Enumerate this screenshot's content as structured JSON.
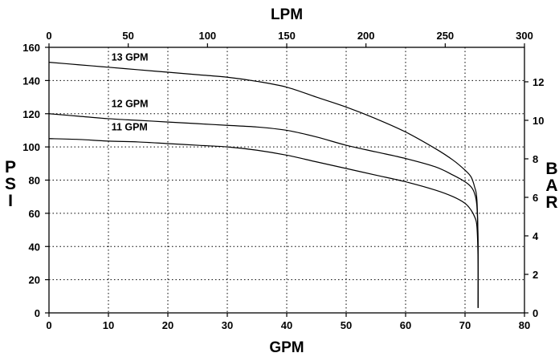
{
  "chart_data": {
    "type": "line",
    "xlabel": "GPM",
    "x2label": "LPM",
    "ylabel": "PSI",
    "y2label": "BAR",
    "xlim": [
      0,
      80
    ],
    "ylim": [
      0,
      160
    ],
    "x2lim": [
      0,
      300
    ],
    "y2lim": [
      0,
      13.79
    ],
    "x_ticks": [
      0,
      10,
      20,
      30,
      40,
      50,
      60,
      70,
      80
    ],
    "y_ticks": [
      0,
      20,
      40,
      60,
      80,
      100,
      120,
      140,
      160
    ],
    "x2_ticks": [
      0,
      50,
      100,
      150,
      200,
      250,
      300
    ],
    "y2_ticks": [
      0,
      2,
      4,
      6,
      8,
      10,
      12
    ],
    "grid": true,
    "series": [
      {
        "name": "13 GPM",
        "label_at": [
          10.5,
          152
        ],
        "x": [
          0,
          5,
          10,
          15,
          20,
          25,
          30,
          35,
          40,
          45,
          50,
          55,
          60,
          65,
          68,
          70,
          71,
          71.6,
          72.0,
          72.2,
          72.2
        ],
        "y": [
          151,
          149.5,
          148,
          146.5,
          145,
          143.5,
          142,
          139.5,
          136,
          130,
          124,
          117,
          109,
          99,
          92,
          86,
          82,
          76,
          68,
          40,
          3
        ]
      },
      {
        "name": "12 GPM",
        "label_at": [
          10.5,
          124
        ],
        "x": [
          0,
          5,
          10,
          15,
          20,
          25,
          30,
          35,
          40,
          45,
          50,
          55,
          60,
          65,
          68,
          70,
          71,
          71.6,
          72.0,
          72.2,
          72.2
        ],
        "y": [
          120,
          118.5,
          117,
          116,
          115,
          114,
          113,
          112,
          110,
          106,
          101,
          97,
          93,
          88,
          83,
          79,
          76,
          72,
          64,
          40,
          3
        ]
      },
      {
        "name": "11 GPM",
        "label_at": [
          10.5,
          110
        ],
        "x": [
          0,
          5,
          10,
          15,
          20,
          25,
          30,
          35,
          40,
          45,
          50,
          55,
          60,
          65,
          68,
          70,
          71,
          71.6,
          72.0,
          72.2,
          72.2
        ],
        "y": [
          105,
          104.5,
          103.5,
          103,
          102,
          101,
          100,
          98,
          95,
          91,
          87,
          83,
          79,
          74,
          70,
          66,
          62,
          58,
          52,
          30,
          3
        ]
      }
    ]
  }
}
